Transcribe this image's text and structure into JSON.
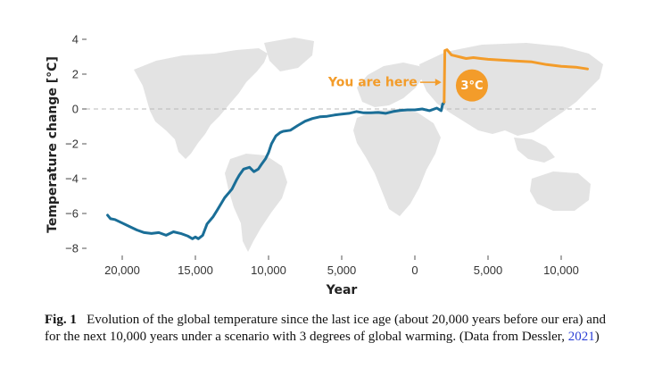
{
  "chart_data": {
    "type": "line",
    "xlabel": "Year",
    "ylabel": "Temperature change [°C]",
    "ylim": [
      -8,
      4
    ],
    "xlim": [
      22500,
      -12500
    ],
    "x_ticks": [
      20000,
      15000,
      10000,
      5000,
      0,
      -5000,
      -10000
    ],
    "x_tick_labels": [
      "20,000",
      "15,000",
      "10,000",
      "5,000",
      "0",
      "5,000",
      "10,000"
    ],
    "y_ticks": [
      4,
      2,
      0,
      -2,
      -4,
      -6,
      -8
    ],
    "y_tick_labels": [
      "4",
      "2",
      "0",
      "−2",
      "−4",
      "−6",
      "−8"
    ],
    "zero_line": "dashed",
    "background": "world map",
    "series": [
      {
        "color": "#1a6e97",
        "x": [
          21000,
          20800,
          20500,
          20000,
          19500,
          19000,
          18500,
          18000,
          17500,
          17000,
          16500,
          16000,
          15500,
          15200,
          15000,
          14800,
          14500,
          14200,
          13800,
          13500,
          13000,
          12500,
          12200,
          12000,
          11700,
          11300,
          11000,
          10700,
          10500,
          10200,
          10000,
          9800,
          9500,
          9200,
          9000,
          8500,
          8000,
          7500,
          7000,
          6500,
          6000,
          5500,
          5000,
          4500,
          4000,
          3500,
          3000,
          2500,
          2000,
          1500,
          1000,
          500,
          0,
          -500,
          -1000,
          -1500,
          -1800,
          -1900,
          -1950,
          -2000
        ],
        "y": [
          -6.1,
          -6.3,
          -6.35,
          -6.55,
          -6.75,
          -6.95,
          -7.1,
          -7.15,
          -7.1,
          -7.25,
          -7.05,
          -7.15,
          -7.3,
          -7.45,
          -7.35,
          -7.45,
          -7.25,
          -6.6,
          -6.2,
          -5.8,
          -5.1,
          -4.6,
          -4.1,
          -3.8,
          -3.45,
          -3.35,
          -3.6,
          -3.45,
          -3.2,
          -2.85,
          -2.5,
          -2.0,
          -1.55,
          -1.35,
          -1.28,
          -1.22,
          -0.95,
          -0.7,
          -0.55,
          -0.45,
          -0.42,
          -0.35,
          -0.3,
          -0.25,
          -0.15,
          -0.22,
          -0.22,
          -0.2,
          -0.25,
          -0.15,
          -0.08,
          -0.05,
          -0.05,
          0.0,
          -0.1,
          0.05,
          -0.1,
          0.3,
          0.3,
          0.4
        ]
      },
      {
        "color": "#f39c2a",
        "x": [
          -2000,
          -2050,
          -2200,
          -2500,
          -3000,
          -3500,
          -4000,
          -4500,
          -5000,
          -6000,
          -7000,
          -8000,
          -9000,
          -10000,
          -11000,
          -11800
        ],
        "y": [
          0.4,
          3.35,
          3.4,
          3.1,
          3.0,
          2.9,
          2.95,
          2.9,
          2.85,
          2.8,
          2.75,
          2.7,
          2.55,
          2.45,
          2.4,
          2.3
        ]
      }
    ],
    "annotations": {
      "you_are_here": "You are here",
      "badge": "3°C"
    }
  },
  "caption": {
    "label": "Fig. 1",
    "text_1": "Evolution of the global temperature since the last ice age (about 20,000 years before our era) and for the next 10,000 years under a scenario with 3 degrees of global warming. (Data from Dessler, ",
    "cite_year": "2021",
    "text_2": ")"
  }
}
